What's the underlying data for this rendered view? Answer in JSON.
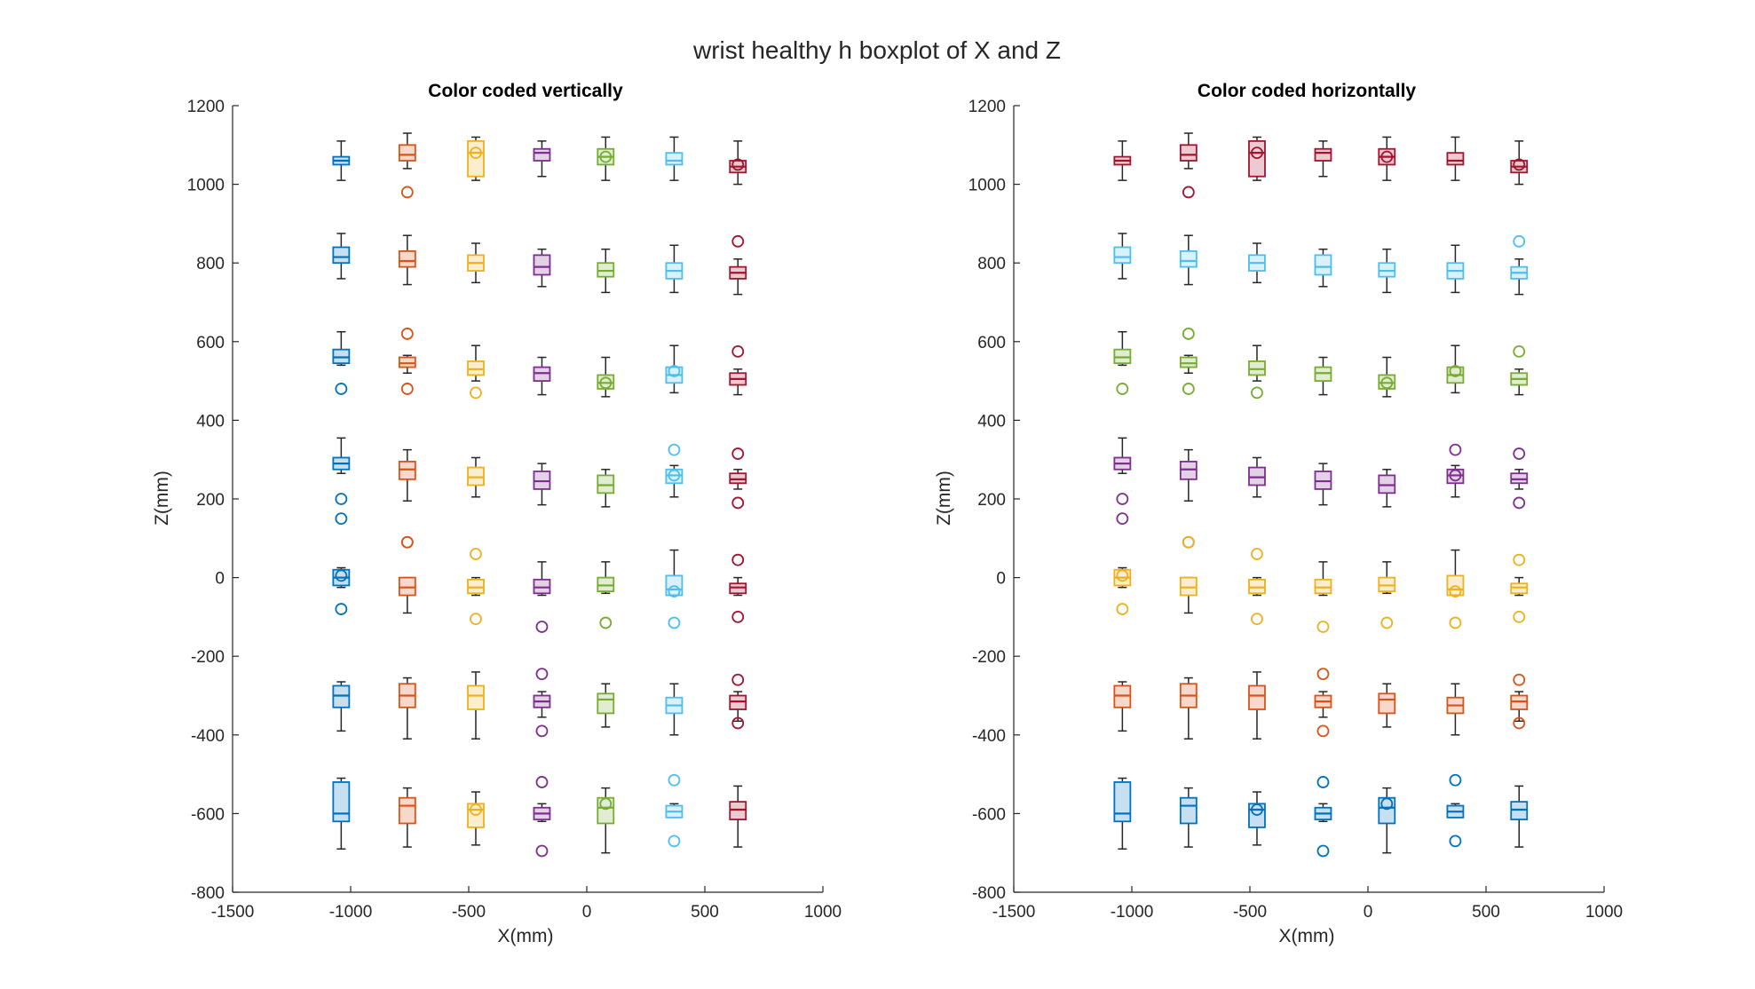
{
  "figure_title": "wrist healthy h boxplot of X and Z",
  "colors": {
    "blue": "#0072BD",
    "orange": "#D95319",
    "yellow": "#EDB120",
    "purple": "#7E2F8E",
    "green": "#77AC30",
    "cyan": "#4DBEEE",
    "red": "#A2142F",
    "whisker": "#262626"
  },
  "chart_data": [
    {
      "type": "boxplot",
      "title": "Color coded vertically",
      "xlabel": "X(mm)",
      "ylabel": "Z(mm)",
      "xlim": [
        -1500,
        1000
      ],
      "ylim": [
        -800,
        1200
      ],
      "xticks": [
        -1500,
        -1000,
        -500,
        0,
        500,
        1000
      ],
      "yticks": [
        -800,
        -600,
        -400,
        -200,
        0,
        200,
        400,
        600,
        800,
        1000,
        1200
      ],
      "xtick_labels": [
        "-1500",
        "-1000",
        "-500",
        "0",
        "500",
        "1000"
      ],
      "ytick_labels": [
        "-800",
        "-600",
        "-400",
        "-200",
        "0",
        "200",
        "400",
        "600",
        "800",
        "1000",
        "1200"
      ],
      "color_by": "column",
      "legend": "none",
      "grid": false
    },
    {
      "type": "boxplot",
      "title": "Color coded horizontally",
      "xlabel": "X(mm)",
      "ylabel": "Z(mm)",
      "xlim": [
        -1500,
        1000
      ],
      "ylim": [
        -800,
        1200
      ],
      "xticks": [
        -1500,
        -1000,
        -500,
        0,
        500,
        1000
      ],
      "yticks": [
        -800,
        -600,
        -400,
        -200,
        0,
        200,
        400,
        600,
        800,
        1000,
        1200
      ],
      "xtick_labels": [
        "-1500",
        "-1000",
        "-500",
        "0",
        "500",
        "1000"
      ],
      "ytick_labels": [
        "-800",
        "-600",
        "-400",
        "-200",
        "0",
        "200",
        "400",
        "600",
        "800",
        "1000",
        "1200"
      ],
      "color_by": "row",
      "legend": "none",
      "grid": false
    }
  ],
  "grid_data": {
    "column_x_centers": [
      -1040,
      -760,
      -470,
      -190,
      80,
      370,
      640
    ],
    "column_colors": [
      "blue",
      "orange",
      "yellow",
      "purple",
      "green",
      "cyan",
      "red"
    ],
    "row_colors_top_to_bottom": [
      "red",
      "cyan",
      "green",
      "purple",
      "yellow",
      "orange",
      "blue"
    ],
    "rows": [
      {
        "boxes": [
          {
            "x": -1040,
            "z": [
              1010,
              1050,
              1060,
              1070,
              1110
            ],
            "outliers": []
          },
          {
            "x": -760,
            "z": [
              1040,
              1060,
              1075,
              1100,
              1130
            ],
            "outliers": [
              980
            ]
          },
          {
            "x": -470,
            "z": [
              1010,
              1020,
              1080,
              1110,
              1120
            ],
            "outliers": [
              1080
            ]
          },
          {
            "x": -190,
            "z": [
              1020,
              1060,
              1080,
              1090,
              1110
            ],
            "outliers": []
          },
          {
            "x": 80,
            "z": [
              1010,
              1050,
              1070,
              1090,
              1120
            ],
            "outliers": [
              1070
            ]
          },
          {
            "x": 370,
            "z": [
              1010,
              1050,
              1060,
              1080,
              1120
            ],
            "outliers": []
          },
          {
            "x": 640,
            "z": [
              1000,
              1030,
              1045,
              1060,
              1110
            ],
            "outliers": [
              1050
            ]
          }
        ]
      },
      {
        "boxes": [
          {
            "x": -1040,
            "z": [
              760,
              800,
              815,
              840,
              875
            ],
            "outliers": []
          },
          {
            "x": -760,
            "z": [
              745,
              790,
              805,
              830,
              870
            ],
            "outliers": []
          },
          {
            "x": -470,
            "z": [
              750,
              780,
              800,
              820,
              850
            ],
            "outliers": []
          },
          {
            "x": -190,
            "z": [
              740,
              770,
              790,
              820,
              835
            ],
            "outliers": []
          },
          {
            "x": 80,
            "z": [
              725,
              765,
              780,
              800,
              835
            ],
            "outliers": []
          },
          {
            "x": 370,
            "z": [
              725,
              760,
              780,
              800,
              845
            ],
            "outliers": []
          },
          {
            "x": 640,
            "z": [
              720,
              760,
              775,
              790,
              810
            ],
            "outliers": [
              855
            ]
          }
        ]
      },
      {
        "boxes": [
          {
            "x": -1040,
            "z": [
              540,
              545,
              560,
              580,
              625
            ],
            "outliers": [
              480
            ]
          },
          {
            "x": -760,
            "z": [
              520,
              535,
              545,
              560,
              565
            ],
            "outliers": [
              620,
              480
            ]
          },
          {
            "x": -470,
            "z": [
              500,
              515,
              530,
              550,
              590
            ],
            "outliers": [
              470
            ]
          },
          {
            "x": -190,
            "z": [
              465,
              500,
              520,
              535,
              560
            ],
            "outliers": []
          },
          {
            "x": 80,
            "z": [
              460,
              480,
              495,
              515,
              560
            ],
            "outliers": [
              495
            ]
          },
          {
            "x": 370,
            "z": [
              470,
              495,
              515,
              535,
              590
            ],
            "outliers": [
              525
            ]
          },
          {
            "x": 640,
            "z": [
              465,
              490,
              505,
              520,
              530
            ],
            "outliers": [
              575
            ]
          }
        ]
      },
      {
        "boxes": [
          {
            "x": -1040,
            "z": [
              265,
              275,
              290,
              305,
              355
            ],
            "outliers": [
              200,
              150
            ]
          },
          {
            "x": -760,
            "z": [
              195,
              250,
              275,
              295,
              325
            ],
            "outliers": [
              90
            ]
          },
          {
            "x": -470,
            "z": [
              205,
              235,
              255,
              280,
              305
            ],
            "outliers": []
          },
          {
            "x": -190,
            "z": [
              185,
              225,
              245,
              270,
              290
            ],
            "outliers": []
          },
          {
            "x": 80,
            "z": [
              180,
              215,
              235,
              260,
              275
            ],
            "outliers": []
          },
          {
            "x": 370,
            "z": [
              205,
              240,
              260,
              275,
              285
            ],
            "outliers": [
              325,
              260
            ]
          },
          {
            "x": 640,
            "z": [
              225,
              240,
              250,
              265,
              275
            ],
            "outliers": [
              315,
              190
            ]
          }
        ]
      },
      {
        "boxes": [
          {
            "x": -1040,
            "z": [
              -25,
              -20,
              0,
              20,
              25
            ],
            "outliers": [
              5,
              -80
            ]
          },
          {
            "x": -760,
            "z": [
              -90,
              -45,
              -25,
              0,
              0
            ],
            "outliers": [
              90
            ]
          },
          {
            "x": -470,
            "z": [
              -45,
              -40,
              -25,
              -5,
              0
            ],
            "outliers": [
              60,
              -105
            ]
          },
          {
            "x": -190,
            "z": [
              -45,
              -40,
              -25,
              -5,
              40
            ],
            "outliers": [
              -125
            ]
          },
          {
            "x": 80,
            "z": [
              -40,
              -35,
              -20,
              0,
              40
            ],
            "outliers": [
              -115
            ]
          },
          {
            "x": 370,
            "z": [
              -45,
              -45,
              -30,
              5,
              70
            ],
            "outliers": [
              -35,
              -115
            ]
          },
          {
            "x": 640,
            "z": [
              -45,
              -40,
              -25,
              -15,
              0
            ],
            "outliers": [
              45,
              -100
            ]
          }
        ]
      },
      {
        "boxes": [
          {
            "x": -1040,
            "z": [
              -390,
              -330,
              -300,
              -275,
              -265
            ],
            "outliers": []
          },
          {
            "x": -760,
            "z": [
              -410,
              -330,
              -300,
              -270,
              -255
            ],
            "outliers": []
          },
          {
            "x": -470,
            "z": [
              -410,
              -335,
              -300,
              -275,
              -240
            ],
            "outliers": []
          },
          {
            "x": -190,
            "z": [
              -355,
              -330,
              -315,
              -300,
              -290
            ],
            "outliers": [
              -245,
              -390
            ]
          },
          {
            "x": 80,
            "z": [
              -380,
              -345,
              -310,
              -295,
              -270
            ],
            "outliers": []
          },
          {
            "x": 370,
            "z": [
              -400,
              -345,
              -325,
              -305,
              -270
            ],
            "outliers": []
          },
          {
            "x": 640,
            "z": [
              -365,
              -335,
              -315,
              -300,
              -290
            ],
            "outliers": [
              -260,
              -370
            ]
          }
        ]
      },
      {
        "boxes": [
          {
            "x": -1040,
            "z": [
              -690,
              -620,
              -600,
              -520,
              -510
            ],
            "outliers": []
          },
          {
            "x": -760,
            "z": [
              -685,
              -625,
              -580,
              -560,
              -535
            ],
            "outliers": []
          },
          {
            "x": -470,
            "z": [
              -680,
              -635,
              -590,
              -575,
              -545
            ],
            "outliers": [
              -590
            ]
          },
          {
            "x": -190,
            "z": [
              -620,
              -615,
              -600,
              -585,
              -575
            ],
            "outliers": [
              -520,
              -695
            ]
          },
          {
            "x": 80,
            "z": [
              -700,
              -625,
              -585,
              -560,
              -535
            ],
            "outliers": [
              -575
            ]
          },
          {
            "x": 370,
            "z": [
              -610,
              -610,
              -595,
              -580,
              -575
            ],
            "outliers": [
              -515,
              -670
            ]
          },
          {
            "x": 640,
            "z": [
              -685,
              -615,
              -590,
              -570,
              -530
            ],
            "outliers": []
          }
        ]
      }
    ]
  }
}
